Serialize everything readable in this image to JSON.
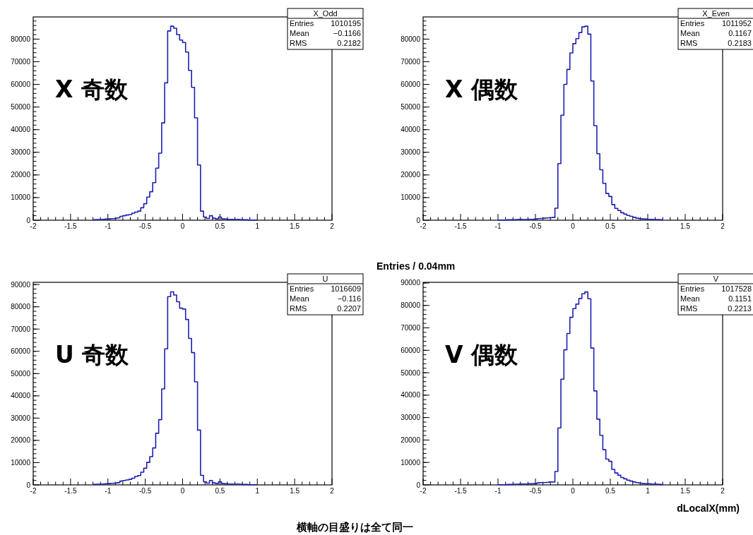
{
  "chart_data": [
    {
      "type": "histogram",
      "title": "X_Odd",
      "color": "#1f1fb4",
      "bins": [
        -1.2,
        -1.16,
        -1.12,
        -1.08,
        -1.04,
        -1.0,
        -0.96,
        -0.92,
        -0.88,
        -0.84,
        -0.8,
        -0.76,
        -0.72,
        -0.68,
        -0.64,
        -0.6,
        -0.56,
        -0.52,
        -0.48,
        -0.44,
        -0.4,
        -0.36,
        -0.32,
        -0.28,
        -0.24,
        -0.2,
        -0.16,
        -0.12,
        -0.08,
        -0.04,
        0.0,
        0.04,
        0.08,
        0.12,
        0.16,
        0.2,
        0.24,
        0.28,
        0.32,
        0.36,
        0.4,
        0.44,
        0.48,
        0.52,
        0.56,
        0.6,
        0.64,
        0.68,
        0.72,
        0.76,
        0.8,
        0.84,
        0.88,
        0.92,
        0.96,
        1.0
      ],
      "values": [
        200,
        300,
        300,
        400,
        500,
        600,
        700,
        800,
        1000,
        1700,
        2000,
        2300,
        2500,
        3100,
        3600,
        4000,
        5500,
        7300,
        10200,
        12600,
        16600,
        23000,
        29600,
        43000,
        60700,
        83600,
        85700,
        84800,
        82000,
        79600,
        78500,
        74300,
        66200,
        58700,
        45200,
        24400,
        4000,
        1400,
        800,
        2000,
        900,
        600,
        1400,
        600,
        500,
        400,
        400,
        300,
        400,
        300,
        200,
        200,
        100,
        100,
        100
      ],
      "xlim": [
        -2,
        2
      ],
      "xticks": [
        -2,
        -1.5,
        -1,
        -0.5,
        0,
        0.5,
        1,
        1.5,
        2
      ],
      "ylim": [
        0,
        89800
      ],
      "yticks": [
        0,
        10000,
        20000,
        30000,
        40000,
        50000,
        60000,
        70000,
        80000
      ],
      "annotations": [
        "Entries",
        "1010195",
        "Mean",
        "−0.1166",
        "RMS",
        "0.2182",
        "X 奇数"
      ]
    },
    {
      "type": "histogram",
      "title": "X_Even",
      "color": "#1f1fb4",
      "bins": [
        -1.0,
        -0.96,
        -0.92,
        -0.88,
        -0.84,
        -0.8,
        -0.76,
        -0.72,
        -0.68,
        -0.64,
        -0.6,
        -0.56,
        -0.52,
        -0.48,
        -0.44,
        -0.4,
        -0.36,
        -0.32,
        -0.28,
        -0.24,
        -0.2,
        -0.16,
        -0.12,
        -0.08,
        -0.04,
        0.0,
        0.04,
        0.08,
        0.12,
        0.16,
        0.2,
        0.24,
        0.28,
        0.32,
        0.36,
        0.4,
        0.44,
        0.48,
        0.52,
        0.56,
        0.6,
        0.64,
        0.68,
        0.72,
        0.76,
        0.8,
        0.84,
        0.88,
        0.92,
        0.96,
        1.0,
        1.04,
        1.08,
        1.12,
        1.16,
        1.2
      ],
      "values": [
        100,
        100,
        100,
        200,
        200,
        200,
        300,
        400,
        300,
        300,
        400,
        400,
        500,
        700,
        800,
        900,
        1000,
        1100,
        1200,
        5300,
        25000,
        46400,
        60000,
        66600,
        73900,
        78000,
        80200,
        82900,
        85400,
        85700,
        82200,
        61500,
        41800,
        29400,
        22300,
        16300,
        11800,
        10500,
        6900,
        5200,
        4300,
        3300,
        2700,
        2100,
        1700,
        1300,
        900,
        700,
        600,
        500,
        400,
        400,
        300,
        300,
        200
      ],
      "xlim": [
        -2,
        2
      ],
      "xticks": [
        -2,
        -1.5,
        -1,
        -0.5,
        0,
        0.5,
        1,
        1.5,
        2
      ],
      "ylim": [
        0,
        89800
      ],
      "yticks": [
        0,
        10000,
        20000,
        30000,
        40000,
        50000,
        60000,
        70000,
        80000
      ],
      "annotations": [
        "Entries",
        "1011952",
        "Mean",
        "0.1167",
        "RMS",
        "0.2183",
        "X 偶数"
      ]
    },
    {
      "type": "histogram",
      "title": "U",
      "color": "#1f1fb4",
      "bins": [
        -1.2,
        -1.16,
        -1.12,
        -1.08,
        -1.04,
        -1.0,
        -0.96,
        -0.92,
        -0.88,
        -0.84,
        -0.8,
        -0.76,
        -0.72,
        -0.68,
        -0.64,
        -0.6,
        -0.56,
        -0.52,
        -0.48,
        -0.44,
        -0.4,
        -0.36,
        -0.32,
        -0.28,
        -0.24,
        -0.2,
        -0.16,
        -0.12,
        -0.08,
        -0.04,
        0.0,
        0.04,
        0.08,
        0.12,
        0.16,
        0.2,
        0.24,
        0.28,
        0.32,
        0.36,
        0.4,
        0.44,
        0.48,
        0.52,
        0.56,
        0.6,
        0.64,
        0.68,
        0.72,
        0.76,
        0.8,
        0.84,
        0.88,
        0.92,
        0.96,
        1.0
      ],
      "values": [
        200,
        300,
        300,
        400,
        500,
        600,
        700,
        800,
        1000,
        1700,
        2000,
        2200,
        2500,
        3000,
        3800,
        4200,
        5700,
        7500,
        10100,
        12700,
        16600,
        23200,
        29300,
        43100,
        61100,
        84600,
        86700,
        85300,
        82300,
        79400,
        79000,
        74300,
        65800,
        59400,
        46300,
        24600,
        4300,
        1400,
        800,
        2000,
        900,
        600,
        1400,
        600,
        500,
        400,
        400,
        300,
        400,
        300,
        200,
        200,
        100,
        100,
        100
      ],
      "xlim": [
        -2,
        2
      ],
      "xticks": [
        -2,
        -1.5,
        -1,
        -0.5,
        0,
        0.5,
        1,
        1.5,
        2
      ],
      "ylim": [
        0,
        91000
      ],
      "yticks": [
        0,
        10000,
        20000,
        30000,
        40000,
        50000,
        60000,
        70000,
        80000,
        90000
      ],
      "annotations": [
        "Entries",
        "1016609",
        "Mean",
        "−0.116",
        "RMS",
        "0.2207",
        "U 奇数"
      ]
    },
    {
      "type": "histogram",
      "title": "V",
      "color": "#1f1fb4",
      "ylabel": "Entries / 0.04mm",
      "xlabel": "dLocalX(mm)",
      "bins": [
        -1.0,
        -0.96,
        -0.92,
        -0.88,
        -0.84,
        -0.8,
        -0.76,
        -0.72,
        -0.68,
        -0.64,
        -0.6,
        -0.56,
        -0.52,
        -0.48,
        -0.44,
        -0.4,
        -0.36,
        -0.32,
        -0.28,
        -0.24,
        -0.2,
        -0.16,
        -0.12,
        -0.08,
        -0.04,
        0.0,
        0.04,
        0.08,
        0.12,
        0.16,
        0.2,
        0.24,
        0.28,
        0.32,
        0.36,
        0.4,
        0.44,
        0.48,
        0.52,
        0.56,
        0.6,
        0.64,
        0.68,
        0.72,
        0.76,
        0.8,
        0.84,
        0.88,
        0.92,
        0.96,
        1.0,
        1.04,
        1.08,
        1.12,
        1.16,
        1.2
      ],
      "values": [
        100,
        100,
        100,
        200,
        200,
        300,
        300,
        400,
        400,
        400,
        500,
        500,
        600,
        900,
        1000,
        1000,
        1100,
        1300,
        1300,
        6000,
        25400,
        47100,
        60200,
        67500,
        74700,
        78600,
        80600,
        83100,
        85200,
        86000,
        83000,
        61000,
        41900,
        29300,
        22100,
        15700,
        11500,
        10500,
        6900,
        5300,
        4300,
        3300,
        2700,
        2100,
        1700,
        1300,
        1000,
        800,
        600,
        500,
        500,
        400,
        400,
        300,
        200
      ],
      "xlim": [
        -2,
        2
      ],
      "xticks": [
        -2,
        -1.5,
        -1,
        -0.5,
        0,
        0.5,
        1,
        1.5,
        2
      ],
      "ylim": [
        0,
        90300
      ],
      "yticks": [
        0,
        10000,
        20000,
        30000,
        40000,
        50000,
        60000,
        70000,
        80000,
        90000
      ],
      "annotations": [
        "Entries",
        "1017528",
        "Mean",
        "0.1151",
        "RMS",
        "0.2213",
        "V 偶数",
        "横軸の目盛りは全て同一"
      ]
    }
  ]
}
